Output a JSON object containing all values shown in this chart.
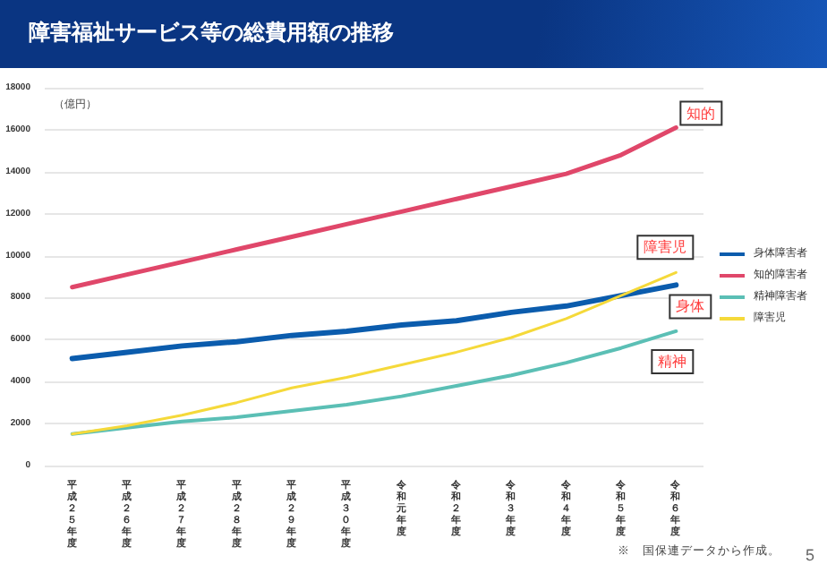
{
  "chart_data": {
    "type": "line",
    "title": "障害福祉サービス等の総費用額の推移",
    "ylabel": "（億円）",
    "categories": [
      "平成２５年度",
      "平成２６年度",
      "平成２７年度",
      "平成２８年度",
      "平成２９年度",
      "平成３０年度",
      "令和元年度",
      "令和２年度",
      "令和３年度",
      "令和４年度",
      "令和５年度",
      "令和６年度"
    ],
    "series": [
      {
        "name": "身体障害者",
        "color": "#0b5cad",
        "values": [
          5100,
          5400,
          5700,
          5900,
          6200,
          6400,
          6700,
          6900,
          7300,
          7600,
          8100,
          8600
        ]
      },
      {
        "name": "知的障害者",
        "color": "#e0476a",
        "values": [
          8500,
          9100,
          9700,
          10300,
          10900,
          11500,
          12100,
          12700,
          13300,
          13900,
          14800,
          16100
        ]
      },
      {
        "name": "精神障害者",
        "color": "#5bbfb5",
        "values": [
          1500,
          1800,
          2100,
          2300,
          2600,
          2900,
          3300,
          3800,
          4300,
          4900,
          5600,
          6400
        ]
      },
      {
        "name": "障害児",
        "color": "#f5d93a",
        "values": [
          1500,
          1900,
          2400,
          3000,
          3700,
          4200,
          4800,
          5400,
          6100,
          7000,
          8100,
          9200
        ]
      }
    ],
    "annotations": [
      {
        "text": "知的",
        "x": "令和６年度",
        "y": 16100
      },
      {
        "text": "障害児",
        "x": "令和６年度",
        "y": 9200
      },
      {
        "text": "身体",
        "x": "令和６年度",
        "y": 8600
      },
      {
        "text": "精神",
        "x": "令和６年度",
        "y": 6400
      },
      "※　国保連データから作成。",
      "5"
    ],
    "ylim": [
      0,
      18000
    ],
    "yticks": [
      0,
      2000,
      4000,
      6000,
      8000,
      10000,
      12000,
      14000,
      16000,
      18000
    ],
    "grid": "y",
    "legend": "right",
    "marker": "none",
    "line_style": "solid"
  }
}
